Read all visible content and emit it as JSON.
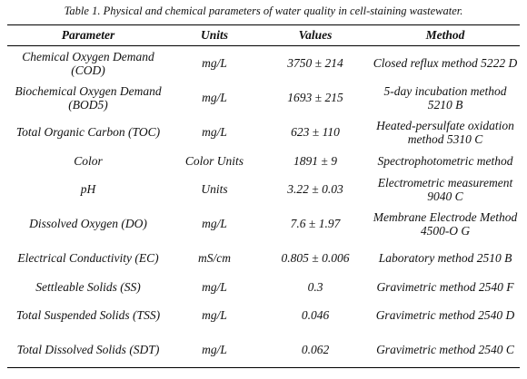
{
  "caption": "Table 1. Physical and chemical parameters of water quality in cell-staining wastewater.",
  "headers": [
    "Parameter",
    "Units",
    "Values",
    "Method"
  ],
  "rows": [
    {
      "parameter": "Chemical Oxygen Demand (COD)",
      "units": "mg/L",
      "values": "3750 ± 214",
      "method": "Closed reflux method 5222 D"
    },
    {
      "parameter": "Biochemical Oxygen Demand (BOD5)",
      "units": "mg/L",
      "values": "1693 ± 215",
      "method": "5-day incubation method 5210 B"
    },
    {
      "parameter": "Total Organic Carbon (TOC)",
      "units": "mg/L",
      "values": "623 ± 110",
      "method": "Heated-persulfate oxidation method 5310 C"
    },
    {
      "parameter": "Color",
      "units": "Color Units",
      "values": "1891 ± 9",
      "method": "Spectrophotometric method"
    },
    {
      "parameter": "pH",
      "units": "Units",
      "values": "3.22 ± 0.03",
      "method": "Electrometric measurement 9040 C"
    },
    {
      "parameter": "Dissolved Oxygen (DO)",
      "units": "mg/L",
      "values": "7.6 ± 1.97",
      "method": "Membrane Electrode Method 4500-O G"
    },
    {
      "parameter": "Electrical Conductivity (EC)",
      "units": "mS/cm",
      "values": "0.805 ± 0.006",
      "method": "Laboratory method 2510 B"
    },
    {
      "parameter": "Settleable Solids (SS)",
      "units": "mg/L",
      "values": "0.3",
      "method": "Gravimetric method 2540 F"
    },
    {
      "parameter": "Total Suspended Solids (TSS)",
      "units": "mg/L",
      "values": "0.046",
      "method": "Gravimetric method 2540 D"
    },
    {
      "parameter": "Total Dissolved Solids (SDT)",
      "units": "mg/L",
      "values": "0.062",
      "method": "Gravimetric method 2540 C"
    }
  ]
}
